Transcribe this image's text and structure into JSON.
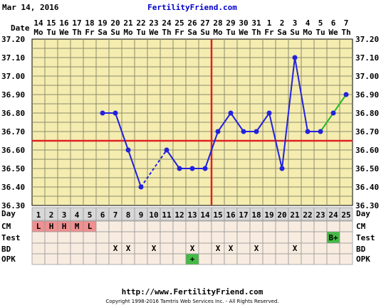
{
  "header": {
    "date": "Mar 14, 2016",
    "site": "FertilityFriend.com"
  },
  "footer": {
    "url": "http://www.FertilityFriend.com",
    "copyright": "Copyright 1998-2016 Tamtris Web Services Inc. - All Rights Reserved."
  },
  "row_labels": {
    "date": "Date",
    "day": "Day",
    "cm": "CM",
    "test": "Test",
    "bd": "BD",
    "opk": "OPK"
  },
  "colors": {
    "plot_bg": "#f5ecb0",
    "grid": "#8c8c6a",
    "series": "#2222dd",
    "projected": "#22bb22",
    "coverline": "#dd2222",
    "cm_fill": "#f09090",
    "positive": "#44bb44",
    "day_bg": "#d8d8d8",
    "row_bg": "#f8ece0"
  },
  "chart_data": {
    "type": "line",
    "ylim": [
      36.3,
      37.2
    ],
    "y_ticks": [
      "37.20",
      "37.10",
      "37.00",
      "36.90",
      "36.80",
      "36.70",
      "36.60",
      "36.50",
      "36.40",
      "36.30"
    ],
    "dates": [
      "14",
      "15",
      "16",
      "17",
      "18",
      "19",
      "20",
      "21",
      "22",
      "23",
      "24",
      "25",
      "26",
      "27",
      "28",
      "29",
      "30",
      "31",
      "1",
      "2",
      "3",
      "4",
      "5",
      "6",
      "7"
    ],
    "weekdays": [
      "Mo",
      "Tu",
      "We",
      "Th",
      "Fr",
      "Sa",
      "Su",
      "Mo",
      "Tu",
      "We",
      "Th",
      "Fr",
      "Sa",
      "Su",
      "Mo",
      "Tu",
      "We",
      "Th",
      "Fr",
      "Sa",
      "Su",
      "Mo",
      "Tu",
      "We",
      "Th"
    ],
    "days": [
      "1",
      "2",
      "3",
      "4",
      "5",
      "6",
      "7",
      "8",
      "9",
      "10",
      "11",
      "12",
      "13",
      "14",
      "15",
      "16",
      "17",
      "18",
      "19",
      "20",
      "21",
      "22",
      "23",
      "24",
      "25"
    ],
    "temperatures": [
      null,
      null,
      null,
      null,
      null,
      36.8,
      36.8,
      36.6,
      36.4,
      null,
      36.6,
      36.5,
      36.5,
      36.5,
      36.7,
      36.8,
      36.7,
      36.7,
      36.8,
      36.5,
      37.1,
      36.7,
      36.7,
      36.8,
      36.9
    ],
    "projected_from_day": 23,
    "coverline": 36.65,
    "ovulation_day": 14,
    "cm": [
      "L",
      "H",
      "H",
      "M",
      "L",
      "",
      "",
      "",
      "",
      "",
      "",
      "",
      "",
      "",
      "",
      "",
      "",
      "",
      "",
      "",
      "",
      "",
      "",
      "",
      ""
    ],
    "test": [
      "",
      "",
      "",
      "",
      "",
      "",
      "",
      "",
      "",
      "",
      "",
      "",
      "",
      "",
      "",
      "",
      "",
      "",
      "",
      "",
      "",
      "",
      "",
      "B+",
      ""
    ],
    "bd": [
      "",
      "",
      "",
      "",
      "",
      "",
      "X",
      "X",
      "",
      "X",
      "",
      "",
      "X",
      "",
      "X",
      "X",
      "",
      "X",
      "",
      "",
      "X",
      "",
      "",
      "",
      ""
    ],
    "opk": [
      "",
      "",
      "",
      "",
      "",
      "",
      "",
      "",
      "",
      "",
      "",
      "",
      "+",
      "",
      "",
      "",
      "",
      "",
      "",
      "",
      "",
      "",
      "",
      "",
      ""
    ]
  }
}
